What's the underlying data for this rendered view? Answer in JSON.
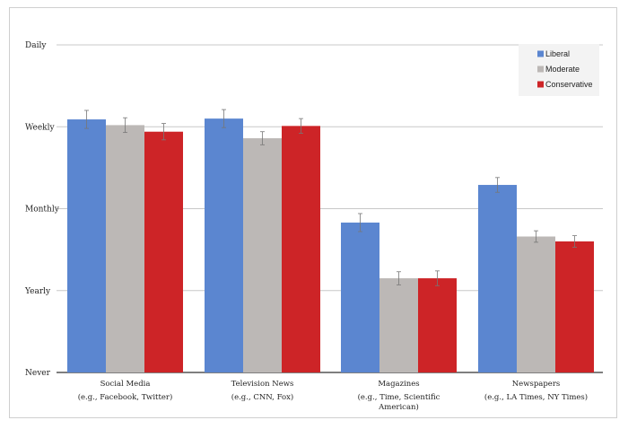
{
  "chart_data": {
    "type": "bar",
    "title": "",
    "xlabel": "",
    "ylabel": "",
    "y_ticks": [
      "Never",
      "Yearly",
      "Monthly",
      "Weekly",
      "Daily"
    ],
    "ylim": [
      0,
      4
    ],
    "grid": true,
    "legend_position": "top-right",
    "categories": [
      "Social Media",
      "Television News",
      "Magazines",
      "Newspapers"
    ],
    "category_sublabels": [
      [
        "(e.g., Facebook, Twitter)"
      ],
      [
        "(e.g., CNN, Fox)"
      ],
      [
        "(e.g., Time, Scientific",
        "American)"
      ],
      [
        "(e.g., LA Times, NY Times)"
      ]
    ],
    "series": [
      {
        "name": "Liberal",
        "color": "#5b86d0",
        "values": [
          3.09,
          3.1,
          1.83,
          2.29
        ],
        "errors": [
          0.11,
          0.11,
          0.11,
          0.09
        ]
      },
      {
        "name": "Moderate",
        "color": "#bcb8b6",
        "values": [
          3.02,
          2.86,
          1.15,
          1.66
        ],
        "errors": [
          0.09,
          0.08,
          0.08,
          0.07
        ]
      },
      {
        "name": "Conservative",
        "color": "#cd2427",
        "values": [
          2.94,
          3.01,
          1.15,
          1.6
        ],
        "errors": [
          0.1,
          0.09,
          0.09,
          0.07
        ]
      }
    ]
  }
}
